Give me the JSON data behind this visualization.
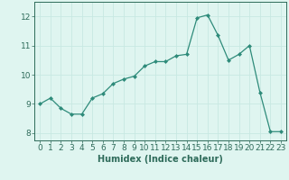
{
  "x": [
    0,
    1,
    2,
    3,
    4,
    5,
    6,
    7,
    8,
    9,
    10,
    11,
    12,
    13,
    14,
    15,
    16,
    17,
    18,
    19,
    20,
    21,
    22,
    23
  ],
  "y": [
    9.0,
    9.2,
    8.85,
    8.65,
    8.65,
    9.2,
    9.35,
    9.7,
    9.85,
    9.95,
    10.3,
    10.45,
    10.45,
    10.65,
    10.7,
    11.95,
    12.05,
    11.35,
    10.5,
    10.7,
    11.0,
    9.4,
    8.05,
    8.05
  ],
  "line_color": "#2e8b7a",
  "marker": "D",
  "marker_size": 2.0,
  "bg_color": "#dff5f0",
  "grid_color": "#c8e8e2",
  "xlabel": "Humidex (Indice chaleur)",
  "xlim": [
    -0.5,
    23.5
  ],
  "ylim": [
    7.75,
    12.5
  ],
  "yticks": [
    8,
    9,
    10,
    11,
    12
  ],
  "xticks": [
    0,
    1,
    2,
    3,
    4,
    5,
    6,
    7,
    8,
    9,
    10,
    11,
    12,
    13,
    14,
    15,
    16,
    17,
    18,
    19,
    20,
    21,
    22,
    23
  ],
  "label_color": "#2e6b5a",
  "tick_color": "#2e6b5a",
  "font_size_label": 7,
  "font_size_tick": 6.5
}
